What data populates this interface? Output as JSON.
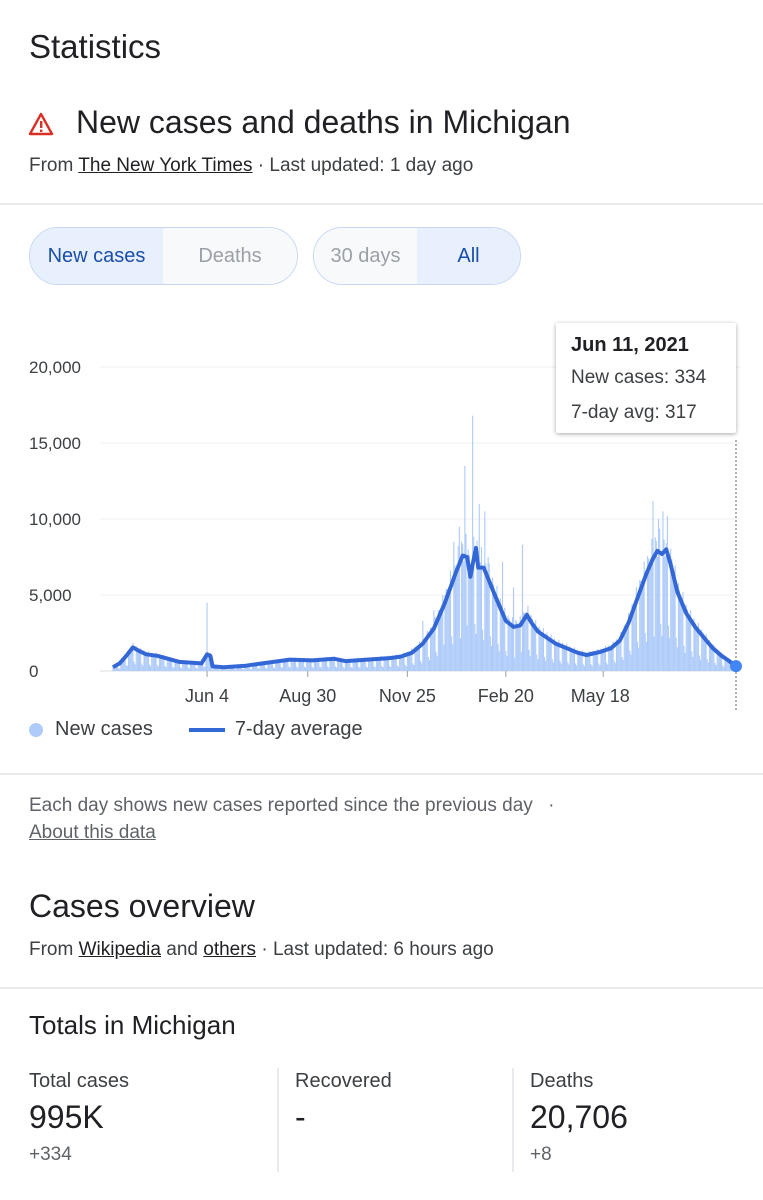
{
  "page": {
    "title": "Statistics"
  },
  "card": {
    "headline": "New cases and deaths in Michigan",
    "from_label": "From",
    "source_link": "The New York Times",
    "updated": "· Last updated: 1 day ago"
  },
  "toggles": {
    "metric": [
      {
        "label": "New cases",
        "selected": true
      },
      {
        "label": "Deaths",
        "selected": false
      }
    ],
    "range": [
      {
        "label": "30 days",
        "selected": false
      },
      {
        "label": "All",
        "selected": true
      }
    ]
  },
  "tooltip": {
    "date": "Jun 11, 2021",
    "new_cases": "New cases: 334",
    "avg": "7-day avg: 317"
  },
  "legend": {
    "bars": "New cases",
    "line": "7-day average"
  },
  "note": {
    "text": "Each day shows new cases reported since the previous day",
    "dot": "·",
    "link": "About this data"
  },
  "overview": {
    "title": "Cases overview",
    "from_label": "From",
    "link1": "Wikipedia",
    "and_label": "and",
    "link2": "others",
    "updated": "· Last updated: 6 hours ago"
  },
  "totals": {
    "title": "Totals in Michigan",
    "stats": [
      {
        "label": "Total cases",
        "value": "995K",
        "change": "+334"
      },
      {
        "label": "Recovered",
        "value": "-",
        "change": ""
      },
      {
        "label": "Deaths",
        "value": "20,706",
        "change": "+8"
      }
    ]
  },
  "colors": {
    "accent": "#3367d6",
    "bars": "#aecbfa",
    "warning": "#d93025"
  },
  "chart_data": {
    "type": "bar",
    "title": "",
    "y_ticks": [
      "20,000",
      "15,000",
      "10,000",
      "5,000",
      "0"
    ],
    "y_values": [
      20000,
      15000,
      10000,
      5000,
      0
    ],
    "x_ticks": [
      "Jun 4",
      "Aug 30",
      "Nov 25",
      "Feb 20",
      "May 18"
    ],
    "ylim": [
      0,
      20000
    ],
    "series": [
      {
        "name": "New cases",
        "kind": "bar"
      },
      {
        "name": "7-day average",
        "kind": "line"
      }
    ],
    "avg_points": [
      [
        0,
        250
      ],
      [
        6,
        500
      ],
      [
        12,
        1000
      ],
      [
        18,
        1550
      ],
      [
        24,
        1300
      ],
      [
        30,
        1100
      ],
      [
        40,
        1000
      ],
      [
        50,
        800
      ],
      [
        60,
        600
      ],
      [
        70,
        550
      ],
      [
        80,
        500
      ],
      [
        85,
        1100
      ],
      [
        88,
        1000
      ],
      [
        90,
        300
      ],
      [
        100,
        250
      ],
      [
        120,
        350
      ],
      [
        140,
        550
      ],
      [
        160,
        750
      ],
      [
        180,
        700
      ],
      [
        200,
        800
      ],
      [
        210,
        650
      ],
      [
        230,
        750
      ],
      [
        250,
        850
      ],
      [
        260,
        950
      ],
      [
        270,
        1200
      ],
      [
        280,
        1800
      ],
      [
        290,
        2800
      ],
      [
        300,
        4500
      ],
      [
        310,
        6500
      ],
      [
        316,
        7600
      ],
      [
        320,
        7500
      ],
      [
        323,
        6200
      ],
      [
        325,
        7000
      ],
      [
        328,
        8100
      ],
      [
        330,
        6800
      ],
      [
        335,
        6800
      ],
      [
        345,
        5000
      ],
      [
        355,
        3300
      ],
      [
        362,
        2900
      ],
      [
        368,
        3000
      ],
      [
        374,
        3700
      ],
      [
        378,
        3200
      ],
      [
        384,
        2600
      ],
      [
        392,
        2200
      ],
      [
        400,
        1800
      ],
      [
        410,
        1500
      ],
      [
        420,
        1200
      ],
      [
        428,
        1050
      ],
      [
        440,
        1250
      ],
      [
        450,
        1500
      ],
      [
        458,
        2000
      ],
      [
        466,
        3200
      ],
      [
        474,
        4800
      ],
      [
        482,
        6400
      ],
      [
        488,
        7400
      ],
      [
        492,
        7900
      ],
      [
        496,
        7700
      ],
      [
        500,
        8000
      ],
      [
        504,
        7000
      ],
      [
        510,
        5200
      ],
      [
        518,
        3800
      ],
      [
        526,
        2900
      ],
      [
        534,
        2200
      ],
      [
        542,
        1500
      ],
      [
        550,
        1000
      ],
      [
        556,
        700
      ],
      [
        563,
        317
      ]
    ],
    "spikes": [
      [
        85,
        4500
      ],
      [
        318,
        13500
      ],
      [
        321,
        8000
      ],
      [
        325,
        16800
      ],
      [
        331,
        11000
      ],
      [
        336,
        10500
      ],
      [
        339,
        7500
      ],
      [
        352,
        7200
      ],
      [
        362,
        5500
      ],
      [
        370,
        8300
      ],
      [
        488,
        11200
      ],
      [
        493,
        10000
      ],
      [
        497,
        10500
      ],
      [
        501,
        10200
      ],
      [
        270,
        1500
      ],
      [
        280,
        3300
      ],
      [
        290,
        4000
      ],
      [
        300,
        5000
      ],
      [
        308,
        8500
      ],
      [
        313,
        9500
      ]
    ]
  }
}
